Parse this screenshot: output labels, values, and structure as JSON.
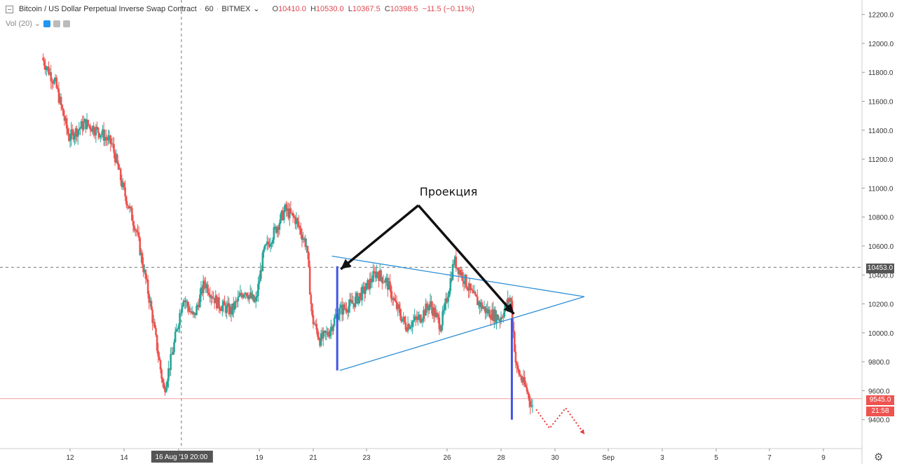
{
  "header": {
    "symbol": "Bitcoin / US Dollar Perpetual Inverse Swap Contract",
    "interval": "60",
    "exchange": "BITMEX",
    "caret": "⌄",
    "ohlc": {
      "o_label": "O",
      "o": "10410.0",
      "h_label": "H",
      "h": "10530.0",
      "l_label": "L",
      "l": "10367.5",
      "c_label": "C",
      "c": "10398.5",
      "change": "−11.5 (−0.11%)"
    }
  },
  "volume": {
    "label": "Vol (20)",
    "caret": "⌄"
  },
  "colors": {
    "up": "#26a69a",
    "down": "#ef5350",
    "annotation_blue": "#4055e6",
    "pattern_line": "#2f8fd6",
    "arrow": "#111111",
    "last_price": "#ef5350",
    "crosshair_price": "#555555"
  },
  "crosshair": {
    "price": "10453.0",
    "time": "16 Aug '19   20:00"
  },
  "price_tags": {
    "last": "9545.0",
    "countdown": "21:58"
  },
  "annotation": {
    "text": "Проекция"
  },
  "icons": {
    "settings": "gear-icon"
  },
  "chart_data": {
    "type": "candlestick",
    "ylim": [
      9200,
      12300
    ],
    "y_ticks": [
      9400,
      9600,
      9800,
      10000,
      10200,
      10400,
      10600,
      10800,
      11000,
      11200,
      11400,
      11600,
      11800,
      12000,
      12200
    ],
    "y_tick_labels": [
      "9400.0",
      "9600.0",
      "9800.0",
      "10000.0",
      "10200.0",
      "10400.0",
      "10600.0",
      "10800.0",
      "11000.0",
      "11200.0",
      "11400.0",
      "11600.0",
      "11800.0",
      "12000.0",
      "12200.0"
    ],
    "x_tick_labels": [
      "12",
      "14",
      "16",
      "19",
      "21",
      "23",
      "26",
      "28",
      "30",
      "Sep",
      "3",
      "5",
      "7",
      "9"
    ],
    "series_path": [
      [
        11,
        11900
      ],
      [
        11.5,
        11720
      ],
      [
        12,
        11350
      ],
      [
        12.6,
        11450
      ],
      [
        13.2,
        11380
      ],
      [
        13.6,
        11300
      ],
      [
        14,
        11000
      ],
      [
        14.5,
        10700
      ],
      [
        15,
        10200
      ],
      [
        15.5,
        9600
      ],
      [
        15.8,
        9850
      ],
      [
        16.2,
        10250
      ],
      [
        16.6,
        10100
      ],
      [
        17,
        10350
      ],
      [
        17.5,
        10200
      ],
      [
        18,
        10150
      ],
      [
        18.5,
        10300
      ],
      [
        18.9,
        10200
      ],
      [
        19.2,
        10550
      ],
      [
        19.6,
        10700
      ],
      [
        20,
        10850
      ],
      [
        20.4,
        10780
      ],
      [
        20.8,
        10600
      ],
      [
        21,
        10100
      ],
      [
        21.3,
        9950
      ],
      [
        21.6,
        10000
      ],
      [
        22,
        10150
      ],
      [
        22.5,
        10200
      ],
      [
        23,
        10300
      ],
      [
        23.4,
        10420
      ],
      [
        23.8,
        10350
      ],
      [
        24.1,
        10200
      ],
      [
        24.5,
        10050
      ],
      [
        25,
        10100
      ],
      [
        25.4,
        10200
      ],
      [
        25.8,
        10050
      ],
      [
        26,
        10200
      ],
      [
        26.3,
        10500
      ],
      [
        26.6,
        10400
      ],
      [
        27,
        10250
      ],
      [
        27.5,
        10150
      ],
      [
        28,
        10100
      ],
      [
        28.4,
        10250
      ],
      [
        28.6,
        9760
      ],
      [
        29,
        9600
      ],
      [
        29.2,
        9480
      ]
    ],
    "annotations": {
      "triangle_upper": [
        [
          21.7,
          10530
        ],
        [
          31.1,
          10250
        ]
      ],
      "triangle_lower": [
        [
          22,
          9740
        ],
        [
          31.1,
          10250
        ]
      ],
      "blue_bars": [
        {
          "x": 21.9,
          "from": 10460,
          "to": 9740
        },
        {
          "x": 28.4,
          "from": 10100,
          "to": 9400
        }
      ],
      "projection_dotted": [
        [
          29.3,
          9470
        ],
        [
          29.8,
          9340
        ],
        [
          30.4,
          9480
        ],
        [
          31.1,
          9300
        ]
      ]
    }
  }
}
